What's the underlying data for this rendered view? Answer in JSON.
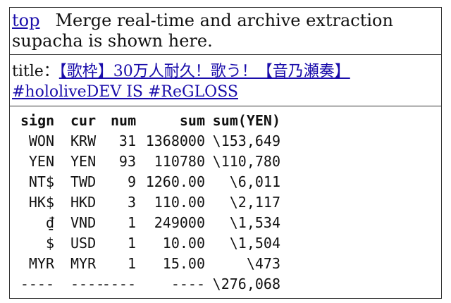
{
  "header": {
    "top_link": "top",
    "message_line1": "Merge real-time and archive extraction",
    "message_line2": "supacha is shown here."
  },
  "title": {
    "label": "title：",
    "link_text_line1": "【歌枠】30万人耐久！歌う！【音乃瀬奏】",
    "link_text_line2": "#hololiveDEV IS #ReGLOSS"
  },
  "table": {
    "columns": [
      "sign",
      "cur",
      "num",
      "sum",
      "sum(YEN)"
    ],
    "rows": [
      {
        "sign": "WON",
        "cur": "KRW",
        "num": "31",
        "sum": "1368000",
        "yen": "\\153,649"
      },
      {
        "sign": "YEN",
        "cur": "YEN",
        "num": "93",
        "sum": "110780",
        "yen": "\\110,780"
      },
      {
        "sign": "NT$",
        "cur": "TWD",
        "num": "9",
        "sum": "1260.00",
        "yen": "\\6,011"
      },
      {
        "sign": "HK$",
        "cur": "HKD",
        "num": "3",
        "sum": "110.00",
        "yen": "\\2,117"
      },
      {
        "sign": "₫",
        "cur": "VND",
        "num": "1",
        "sum": "249000",
        "yen": "\\1,534"
      },
      {
        "sign": "$",
        "cur": "USD",
        "num": "1",
        "sum": "10.00",
        "yen": "\\1,504"
      },
      {
        "sign": "MYR",
        "cur": "MYR",
        "num": "1",
        "sum": "15.00",
        "yen": "\\473"
      }
    ],
    "footer": {
      "sign": "----",
      "cur": "----",
      "num": "----",
      "sum": "----",
      "yen": "\\276,068"
    }
  }
}
